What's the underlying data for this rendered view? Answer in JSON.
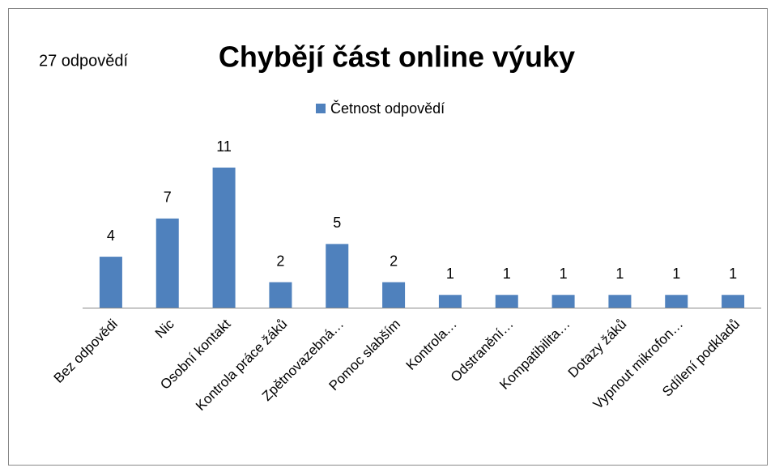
{
  "chart_data": {
    "type": "bar",
    "title": "Chybějí část online výuky",
    "annotation": "27 odpovědí",
    "categories": [
      "Bez odpovědi",
      "Nic",
      "Osobní kontakt",
      "Kontrola práce žáků",
      "Zpětnovazebná…",
      "Pomoc slabším",
      "Kontrola…",
      "Odstranění…",
      "Kompatibilita…",
      "Dotazy žáků",
      "Vypnout mikrofon…",
      "Sdílení podkladů"
    ],
    "series": [
      {
        "name": "Četnost odpovědí",
        "color": "#4f81bd",
        "values": [
          4,
          7,
          11,
          2,
          5,
          2,
          1,
          1,
          1,
          1,
          1,
          1
        ]
      }
    ],
    "legend": "top"
  }
}
